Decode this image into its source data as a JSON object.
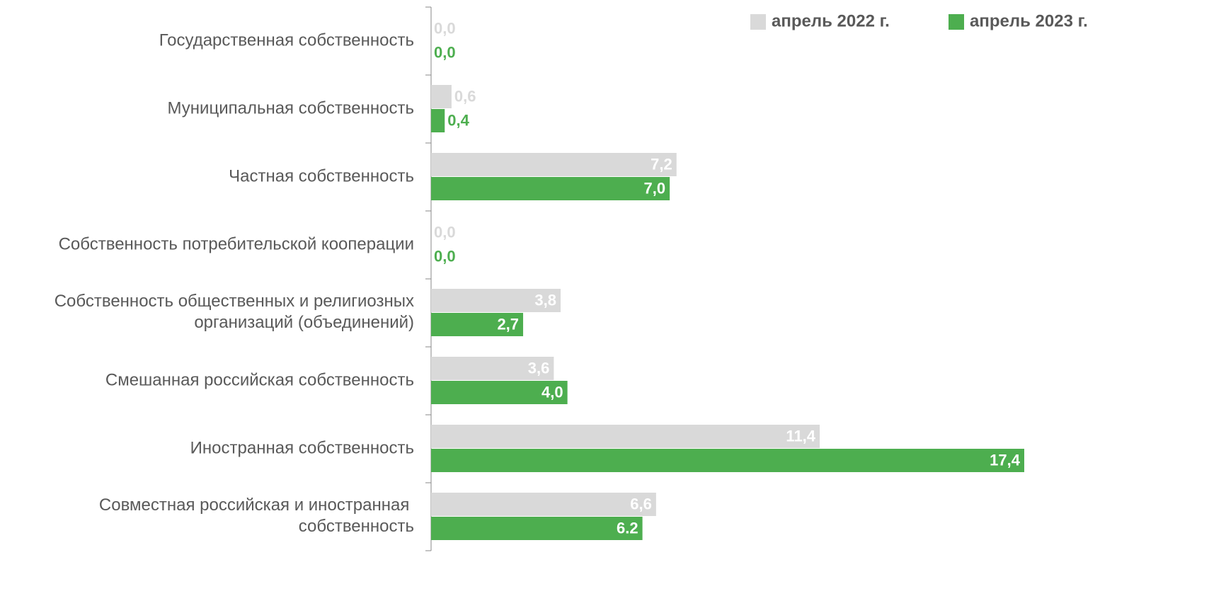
{
  "chart_data": {
    "type": "barh",
    "categories": [
      "Государственная собственность",
      "Муниципальная собственность",
      "Частная собственность",
      "Собственность потребительской кооперации",
      "Собственность общественных и религиозных\nорганизаций (объединений)",
      "Смешанная российская собственность",
      "Иностранная собственность",
      "Совместная российская и иностранная \nсобственность"
    ],
    "series": [
      {
        "name": "апрель 2022 г.",
        "color": "#d9d9d9",
        "values": [
          0,
          0.6,
          7.2,
          0,
          3.8,
          3.6,
          11.4,
          6.6
        ],
        "value_labels": [
          "0,0",
          "0,6",
          "7,2",
          "0,0",
          "3,8",
          "3,6",
          "11,4",
          "6,6"
        ]
      },
      {
        "name": "апрель 2023 г.",
        "color": "#4dae4f",
        "values": [
          0,
          0.4,
          7.0,
          0,
          2.7,
          4.0,
          17.4,
          6.2
        ],
        "value_labels": [
          "0,0",
          "0,4",
          "7,0",
          "0,0",
          "2,7",
          "4,0",
          "17,4",
          "6.2"
        ]
      }
    ],
    "legend": "top-right"
  }
}
